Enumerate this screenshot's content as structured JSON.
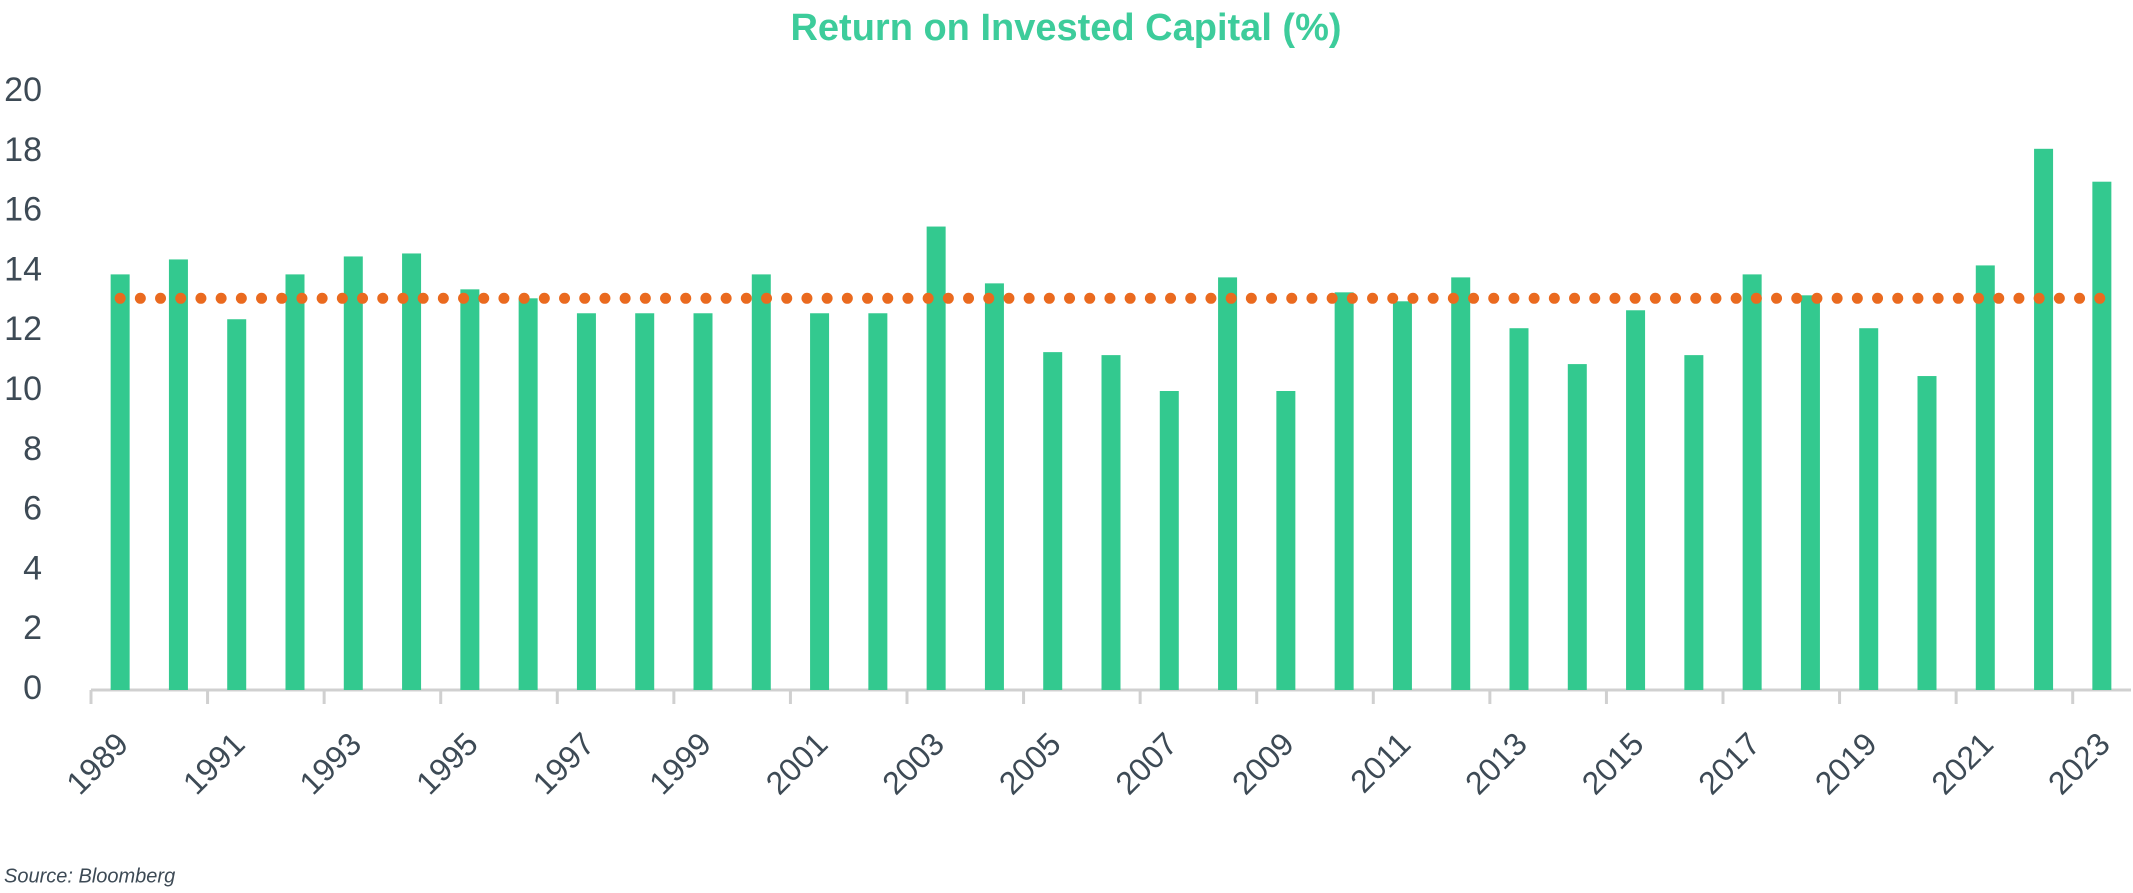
{
  "chart_data": {
    "type": "bar",
    "title": "Return on Invested Capital (%)",
    "source": "Source: Bloomberg",
    "categories": [
      "1989",
      null,
      "1991",
      null,
      "1993",
      null,
      "1995",
      null,
      "1997",
      null,
      "1999",
      null,
      "2001",
      null,
      "2003",
      null,
      "2005",
      null,
      "2007",
      null,
      "2009",
      null,
      "2011",
      null,
      "2013",
      null,
      "2015",
      null,
      "2017",
      null,
      "2019",
      null,
      "2021",
      null,
      "2023"
    ],
    "values": [
      13.9,
      14.4,
      12.4,
      13.9,
      14.5,
      14.6,
      13.4,
      13.1,
      12.6,
      12.6,
      12.6,
      13.9,
      12.6,
      12.6,
      15.5,
      13.6,
      11.3,
      11.2,
      10.0,
      13.8,
      10.0,
      13.3,
      13.0,
      13.8,
      12.1,
      10.9,
      12.7,
      11.2,
      13.9,
      13.2,
      12.1,
      10.5,
      14.2,
      18.1,
      17.0
    ],
    "color": "#33c98f",
    "reference_line": 13.1,
    "reference_color": "#ea6a1f",
    "ylim": [
      0,
      20
    ],
    "yticks": [
      0,
      2,
      4,
      6,
      8,
      10,
      12,
      14,
      16,
      18,
      20
    ],
    "grid": false
  }
}
